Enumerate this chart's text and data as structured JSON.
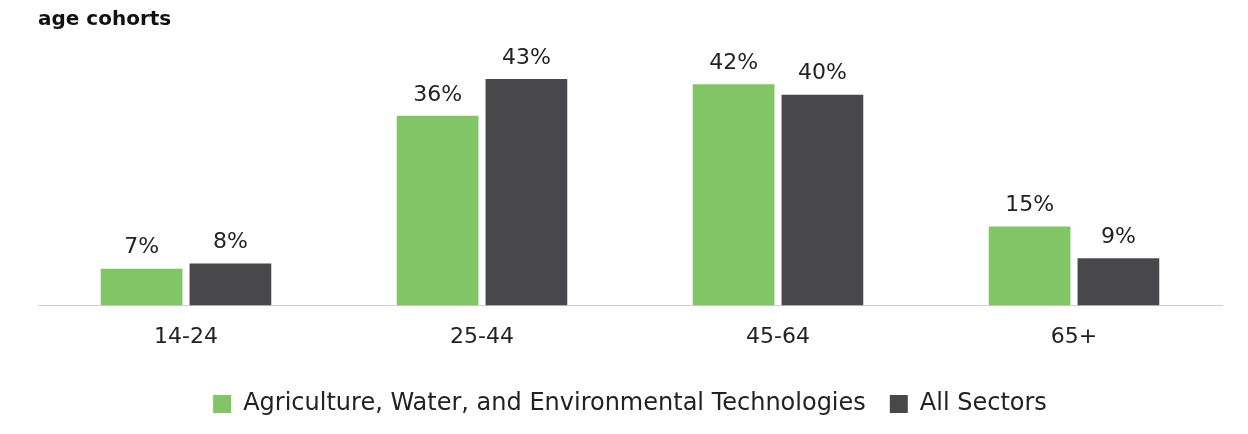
{
  "chart_data": {
    "type": "bar",
    "title": "age cohorts",
    "categories": [
      "14-24",
      "25-44",
      "45-64",
      "65+"
    ],
    "series": [
      {
        "name": "Agriculture, Water, and Environmental Technologies",
        "color": "#82c566",
        "values": [
          7,
          36,
          42,
          15
        ],
        "value_labels": [
          "7%",
          "36%",
          "42%",
          "15%"
        ]
      },
      {
        "name": "All Sectors",
        "color": "#48484a",
        "values": [
          8,
          43,
          40,
          9
        ],
        "value_labels": [
          "8%",
          "43%",
          "40%",
          "9%"
        ]
      }
    ],
    "legend": "bottom",
    "grid": false
  }
}
